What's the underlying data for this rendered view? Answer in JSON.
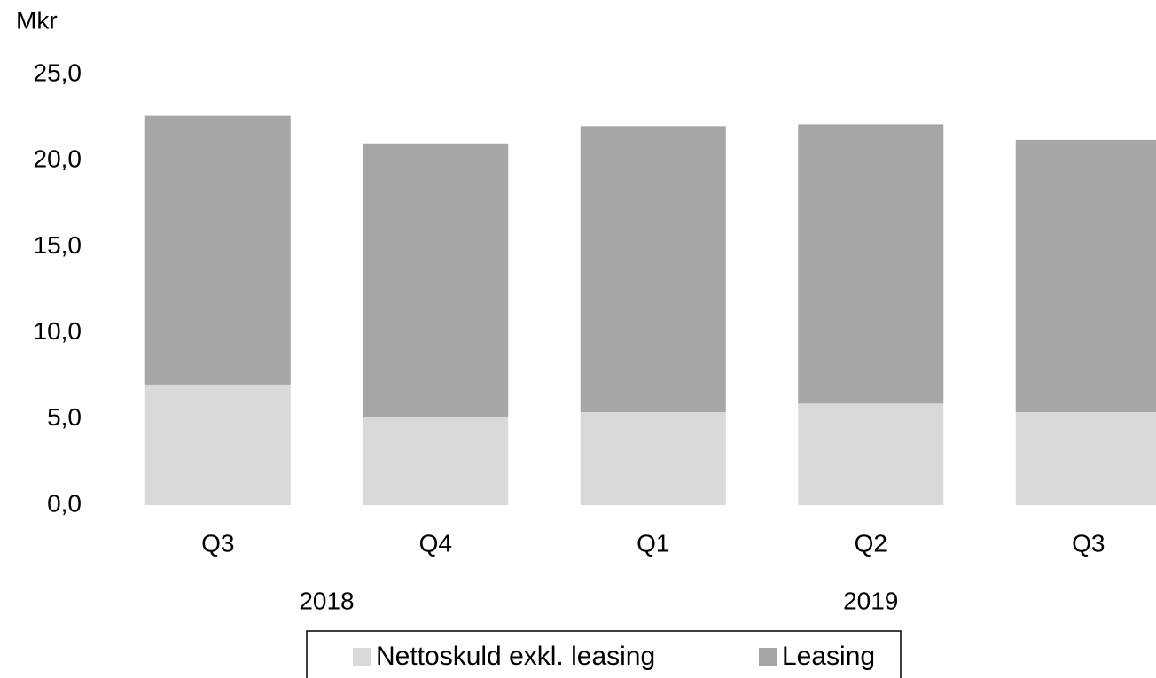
{
  "chart_data": {
    "type": "stacked_bar",
    "y_label": "Mkr",
    "categories": [
      "Q3",
      "Q4",
      "Q1",
      "Q2",
      "Q3"
    ],
    "x_groups": [
      {
        "label": "2018",
        "start": 0,
        "end": 1
      },
      {
        "label": "2019",
        "start": 2,
        "end": 4
      }
    ],
    "series": [
      {
        "name": "Nettoskuld exkl. leasing",
        "color": "#d9d9d9",
        "values": [
          7.0,
          5.1,
          5.4,
          5.9,
          5.4
        ]
      },
      {
        "name": "Leasing",
        "color": "#a6a6a6",
        "values": [
          15.6,
          15.9,
          16.6,
          16.2,
          15.8
        ]
      }
    ],
    "ylim": [
      0,
      25
    ],
    "yticks": [
      {
        "value": 0,
        "label": "0,0"
      },
      {
        "value": 5,
        "label": "5,0"
      },
      {
        "value": 10,
        "label": "10,0"
      },
      {
        "value": 15,
        "label": "15,0"
      },
      {
        "value": 20,
        "label": "20,0"
      },
      {
        "value": 25,
        "label": "25,0"
      }
    ],
    "grid": false,
    "legend": "bottom"
  }
}
